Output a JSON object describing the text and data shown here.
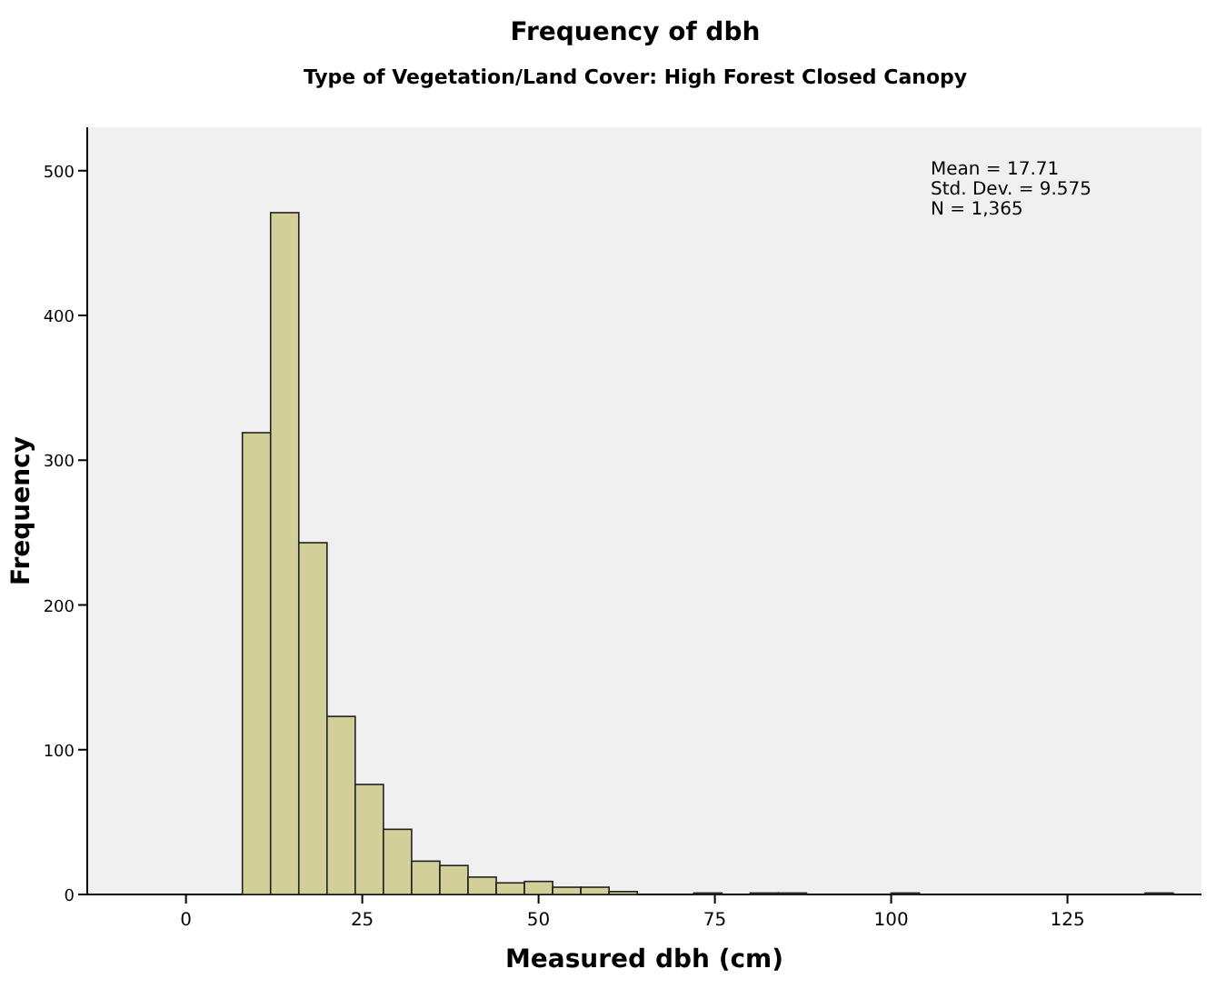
{
  "chart_data": {
    "type": "histogram",
    "title": "Frequency of dbh",
    "subtitle": "Type of Vegetation/Land Cover: High Forest Closed Canopy",
    "xlabel": "Measured dbh (cm)",
    "ylabel": "Frequency",
    "bins": [
      8,
      12,
      16,
      20,
      24,
      28,
      32,
      36,
      40,
      44,
      48,
      52,
      56,
      60,
      64,
      68,
      72,
      76,
      80,
      84,
      88,
      92,
      96,
      100,
      104,
      108,
      112,
      116,
      120,
      124,
      128,
      132,
      136,
      140
    ],
    "values": [
      319,
      471,
      243,
      123,
      76,
      45,
      23,
      20,
      12,
      8,
      9,
      5,
      5,
      2,
      0,
      0,
      1,
      0,
      1,
      1,
      0,
      0,
      0,
      1,
      0,
      0,
      0,
      0,
      0,
      0,
      0,
      0,
      1
    ],
    "color": "#d3cf98",
    "xlim": [
      -14,
      144
    ],
    "xticks": [
      0,
      25,
      50,
      75,
      100,
      125
    ],
    "ylim": [
      0,
      530
    ],
    "yticks": [
      0,
      100,
      200,
      300,
      400,
      500
    ],
    "grid": false,
    "annotations": [
      "Mean = 17.71",
      "Std. Dev. = 9.575",
      "N = 1,365"
    ]
  }
}
